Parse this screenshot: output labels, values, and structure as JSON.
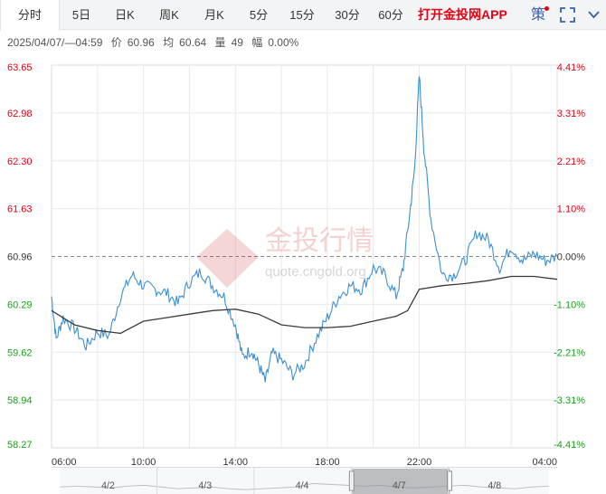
{
  "tabs": [
    {
      "label": "分时",
      "active": true
    },
    {
      "label": "5日",
      "active": false
    },
    {
      "label": "日K",
      "active": false
    },
    {
      "label": "周K",
      "active": false
    },
    {
      "label": "月K",
      "active": false
    },
    {
      "label": "5分",
      "active": false
    },
    {
      "label": "15分",
      "active": false
    },
    {
      "label": "30分",
      "active": false
    },
    {
      "label": "60分",
      "active": false
    }
  ],
  "promo_label": "打开金投网APP",
  "strategy_label": "策",
  "info": {
    "datetime": "2025/04/07/—04:59",
    "price_label": "价",
    "price": "60.96",
    "avg_label": "均",
    "avg": "60.64",
    "vol_label": "量",
    "vol": "49",
    "amp_label": "幅",
    "amp": "0.00%"
  },
  "watermark": {
    "brand": "金投行情",
    "url": "quote.cngold.org"
  },
  "colors": {
    "up": "#e60012",
    "down": "#16a316",
    "neutral": "#333333",
    "price_line": "#3d8fd0",
    "avg_line": "#3a3a3a"
  },
  "chart_data": {
    "type": "line",
    "reference_price": 60.96,
    "y_ticks": [
      "63.65",
      "62.98",
      "62.30",
      "61.63",
      "60.96",
      "60.29",
      "59.62",
      "58.94",
      "58.27"
    ],
    "pct_ticks": [
      "4.41%",
      "3.31%",
      "2.21%",
      "1.10%",
      "0.00%",
      "-1.10%",
      "-2.21%",
      "-3.31%",
      "-4.41%"
    ],
    "x_ticks": [
      "06:00",
      "10:00",
      "14:00",
      "18:00",
      "22:00",
      "04:00"
    ],
    "ylim": [
      58.27,
      63.65
    ],
    "x_range_hours": [
      6,
      28
    ],
    "grid": true,
    "series": [
      {
        "name": "价",
        "x": [
          6.0,
          6.2,
          6.5,
          7.0,
          7.5,
          8.0,
          8.5,
          9.0,
          9.5,
          10.0,
          10.5,
          11.0,
          11.5,
          12.0,
          12.5,
          13.0,
          13.5,
          14.0,
          14.3,
          14.7,
          15.0,
          15.3,
          15.6,
          16.0,
          16.5,
          17.0,
          17.5,
          18.0,
          18.5,
          19.0,
          19.5,
          20.0,
          20.5,
          21.0,
          21.3,
          21.6,
          21.8,
          22.0,
          22.2,
          22.5,
          23.0,
          23.5,
          24.0,
          24.5,
          25.0,
          25.5,
          26.0,
          26.5,
          27.0,
          27.5,
          28.0
        ],
        "values": [
          60.4,
          59.8,
          60.1,
          59.95,
          59.7,
          59.9,
          59.85,
          60.4,
          60.7,
          60.55,
          60.5,
          60.45,
          60.3,
          60.6,
          60.75,
          60.55,
          60.4,
          60.0,
          59.55,
          59.65,
          59.45,
          59.2,
          59.6,
          59.5,
          59.3,
          59.45,
          59.8,
          60.1,
          60.4,
          60.55,
          60.5,
          60.8,
          60.7,
          60.4,
          60.8,
          61.6,
          62.2,
          63.5,
          62.5,
          61.5,
          60.7,
          60.7,
          60.9,
          61.3,
          61.2,
          60.8,
          61.1,
          60.9,
          61.0,
          60.9,
          60.96
        ]
      },
      {
        "name": "均",
        "x": [
          6.0,
          7.0,
          8.0,
          9.0,
          10.0,
          11.0,
          12.0,
          13.0,
          14.0,
          15.0,
          16.0,
          17.0,
          18.0,
          19.0,
          20.0,
          21.0,
          21.5,
          22.0,
          23.0,
          24.0,
          25.0,
          26.0,
          27.0,
          28.0
        ],
        "values": [
          60.2,
          60.0,
          59.92,
          59.88,
          60.05,
          60.1,
          60.15,
          60.2,
          60.22,
          60.15,
          60.0,
          59.96,
          59.96,
          59.98,
          60.05,
          60.12,
          60.2,
          60.5,
          60.55,
          60.58,
          60.62,
          60.68,
          60.68,
          60.64
        ]
      }
    ]
  },
  "navigator": {
    "dates": [
      "4/2",
      "4/3",
      "4/4",
      "4/7",
      "4/8"
    ]
  }
}
